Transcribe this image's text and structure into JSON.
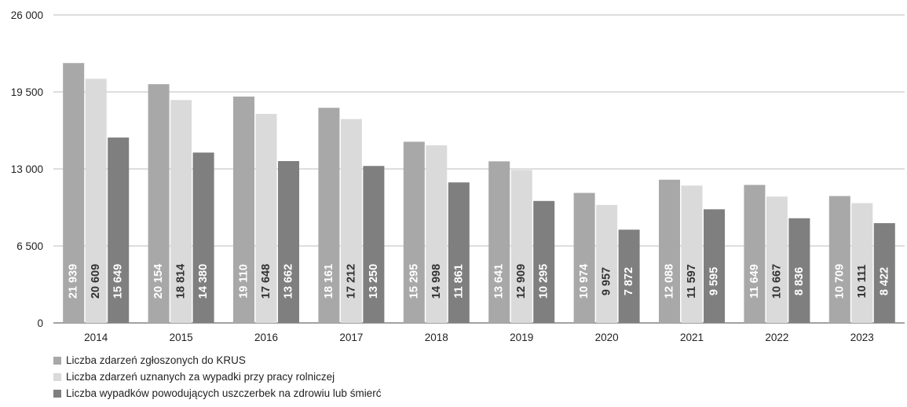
{
  "chart_data": {
    "type": "bar",
    "categories": [
      "2014",
      "2015",
      "2016",
      "2017",
      "2018",
      "2019",
      "2020",
      "2021",
      "2022",
      "2023"
    ],
    "series": [
      {
        "name": "Liczba zdarzeń zgłoszonych do KRUS",
        "color": "#a8a8a8",
        "label_color": "#ffffff",
        "values": [
          21939,
          20154,
          19110,
          18161,
          15295,
          13641,
          10974,
          12088,
          11649,
          10709
        ],
        "labels": [
          "21 939",
          "20 154",
          "19 110",
          "18 161",
          "15 295",
          "13 641",
          "10 974",
          "12 088",
          "11 649",
          "10 709"
        ]
      },
      {
        "name": "Liczba zdarzeń uznanych za wypadki przy pracy rolniczej",
        "color": "#dadada",
        "label_color": "#333333",
        "values": [
          20609,
          18814,
          17648,
          17212,
          14998,
          12909,
          9957,
          11597,
          10667,
          10111
        ],
        "labels": [
          "20 609",
          "18 814",
          "17 648",
          "17 212",
          "14 998",
          "12 909",
          "9 957",
          "11 597",
          "10 667",
          "10 111"
        ]
      },
      {
        "name": "Liczba wypadków powodujących uszczerbek na zdrowiu lub śmierć",
        "color": "#7f7f7f",
        "label_color": "#ffffff",
        "values": [
          15649,
          14380,
          13662,
          13250,
          11861,
          10295,
          7872,
          9595,
          8836,
          8422
        ],
        "labels": [
          "15 649",
          "14 380",
          "13 662",
          "13 250",
          "11 861",
          "10 295",
          "7 872",
          "9 595",
          "8 836",
          "8 422"
        ]
      }
    ],
    "yticks": [
      0,
      6500,
      13000,
      19500,
      26000
    ],
    "ytick_labels": [
      "0",
      "6 500",
      "13 000",
      "19 500",
      "26 000"
    ],
    "ylim": [
      0,
      26000
    ],
    "grid": true,
    "legend_position": "bottom-left",
    "title": "",
    "xlabel": "",
    "ylabel": ""
  }
}
